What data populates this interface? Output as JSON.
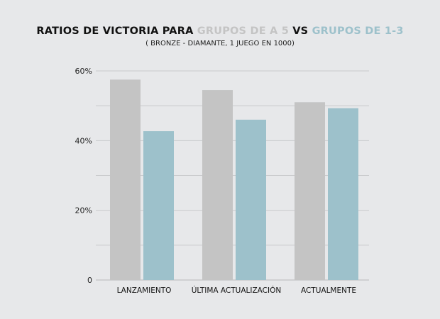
{
  "title": {
    "part1": "RATIOS DE VICTORIA PARA ",
    "part2": "GRUPOS DE A 5",
    "part3": " VS ",
    "part4": "GRUPOS DE 1-3"
  },
  "subtitle": "( BRONZE - DIAMANTE, 1 JUEGO EN 1000)",
  "colors": {
    "grupos_5": "#c4c4c4",
    "grupos_1_3": "#9dc1cb",
    "grid": "#c9cacc",
    "baseline": "#b8b9bb"
  },
  "chart_data": {
    "type": "bar",
    "categories": [
      "LANZAMIENTO",
      "ÚLTIMA ACTUALIZACIÓN",
      "ACTUALMENTE"
    ],
    "series": [
      {
        "name": "GRUPOS DE A 5",
        "values": [
          57.5,
          54.5,
          51.0
        ]
      },
      {
        "name": "GRUPOS DE 1-3",
        "values": [
          42.7,
          46.0,
          49.3
        ]
      }
    ],
    "ylim": [
      0,
      60
    ],
    "yticks": [
      {
        "value": 0,
        "label": "0"
      },
      {
        "value": 20,
        "label": "20%"
      },
      {
        "value": 40,
        "label": "40%"
      },
      {
        "value": 60,
        "label": "60%"
      }
    ],
    "gridlines": [
      10,
      20,
      30,
      40,
      50,
      60
    ],
    "grid": true
  }
}
